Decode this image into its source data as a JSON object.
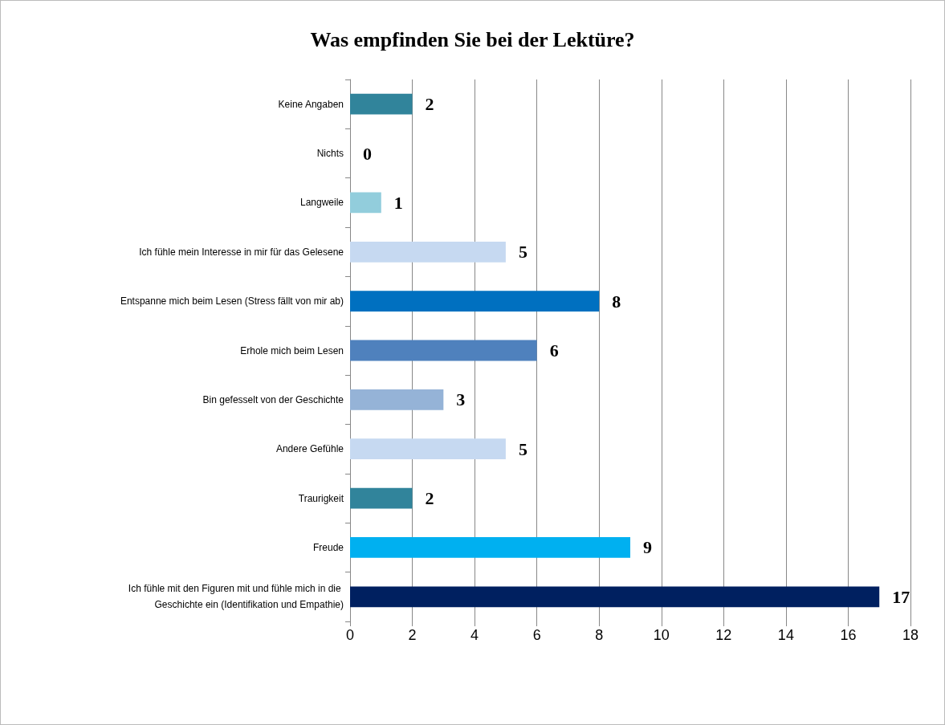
{
  "chart_data": {
    "type": "bar",
    "orientation": "horizontal",
    "title": "Was empfinden Sie bei der Lektüre?",
    "categories": [
      "Keine Angaben",
      "Nichts",
      "Langweile",
      "Ich fühle mein Interesse in mir für das Gelesene",
      "Entspanne mich beim Lesen (Stress fällt von mir ab)",
      "Erhole mich beim Lesen",
      "Bin gefesselt von der Geschichte",
      "Andere Gefühle",
      "Traurigkeit",
      "Freude",
      "Ich fühle mit den Figuren mit und fühle mich in die Geschichte ein (Identifikation und Empathie)"
    ],
    "values": [
      2,
      0,
      1,
      5,
      8,
      6,
      3,
      5,
      2,
      9,
      17
    ],
    "colors": [
      "#31849b",
      "#31849b",
      "#92cddc",
      "#c6d9f1",
      "#0070c0",
      "#4f81bd",
      "#95b3d7",
      "#c6d9f1",
      "#31849b",
      "#00b0f0",
      "#002060"
    ],
    "xlim": [
      0,
      18
    ],
    "xticks": [
      0,
      2,
      4,
      6,
      8,
      10,
      12,
      14,
      16,
      18
    ],
    "grid": "x",
    "data_labels": true
  }
}
